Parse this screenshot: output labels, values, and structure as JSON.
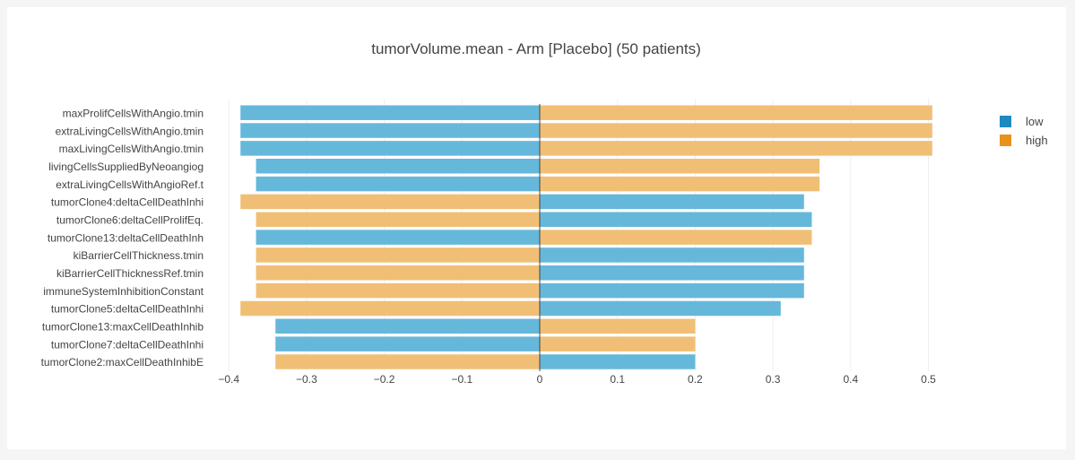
{
  "chart_data": {
    "type": "bar",
    "orientation": "horizontal",
    "title": "tumorVolume.mean - Arm [Placebo] (50 patients)",
    "xlabel": "",
    "ylabel": "",
    "xlim": [
      -0.4,
      0.5
    ],
    "x_ticks": [
      -0.4,
      -0.3,
      -0.2,
      -0.1,
      0,
      0.1,
      0.2,
      0.3,
      0.4,
      0.5
    ],
    "x_tick_labels": [
      "−0.4",
      "−0.3",
      "−0.2",
      "−0.1",
      "0",
      "0.1",
      "0.2",
      "0.3",
      "0.4",
      "0.5"
    ],
    "grid": true,
    "legend_position": "top-right",
    "categories": [
      "maxProlifCellsWithAngio.tmin",
      "extraLivingCellsWithAngio.tmin",
      "maxLivingCellsWithAngio.tmin",
      "livingCellsSuppliedByNeoangiog",
      "extraLivingCellsWithAngioRef.t",
      "tumorClone4:deltaCellDeathInhi",
      "tumorClone6:deltaCellProlifEq.",
      "tumorClone13:deltaCellDeathInh",
      "kiBarrierCellThickness.tmin",
      "kiBarrierCellThicknessRef.tmin",
      "immuneSystemInhibitionConstant",
      "tumorClone5:deltaCellDeathInhi",
      "tumorClone13:maxCellDeathInhib",
      "tumorClone7:deltaCellDeathInhi",
      "tumorClone2:maxCellDeathInhibE"
    ],
    "series": [
      {
        "name": "low",
        "color": "#66b8db",
        "values": [
          -0.385,
          -0.385,
          -0.385,
          -0.365,
          -0.365,
          0.34,
          0.35,
          -0.365,
          0.34,
          0.34,
          0.34,
          0.31,
          -0.34,
          -0.34,
          0.2
        ]
      },
      {
        "name": "high",
        "color": "#f0bf75",
        "values": [
          0.505,
          0.505,
          0.505,
          0.36,
          0.36,
          -0.385,
          -0.365,
          0.35,
          -0.365,
          -0.365,
          -0.365,
          -0.385,
          0.2,
          0.2,
          -0.34
        ]
      }
    ]
  },
  "legend": {
    "items": [
      {
        "label": "low",
        "color": "#1f8ac0"
      },
      {
        "label": "high",
        "color": "#e8921c"
      }
    ]
  }
}
